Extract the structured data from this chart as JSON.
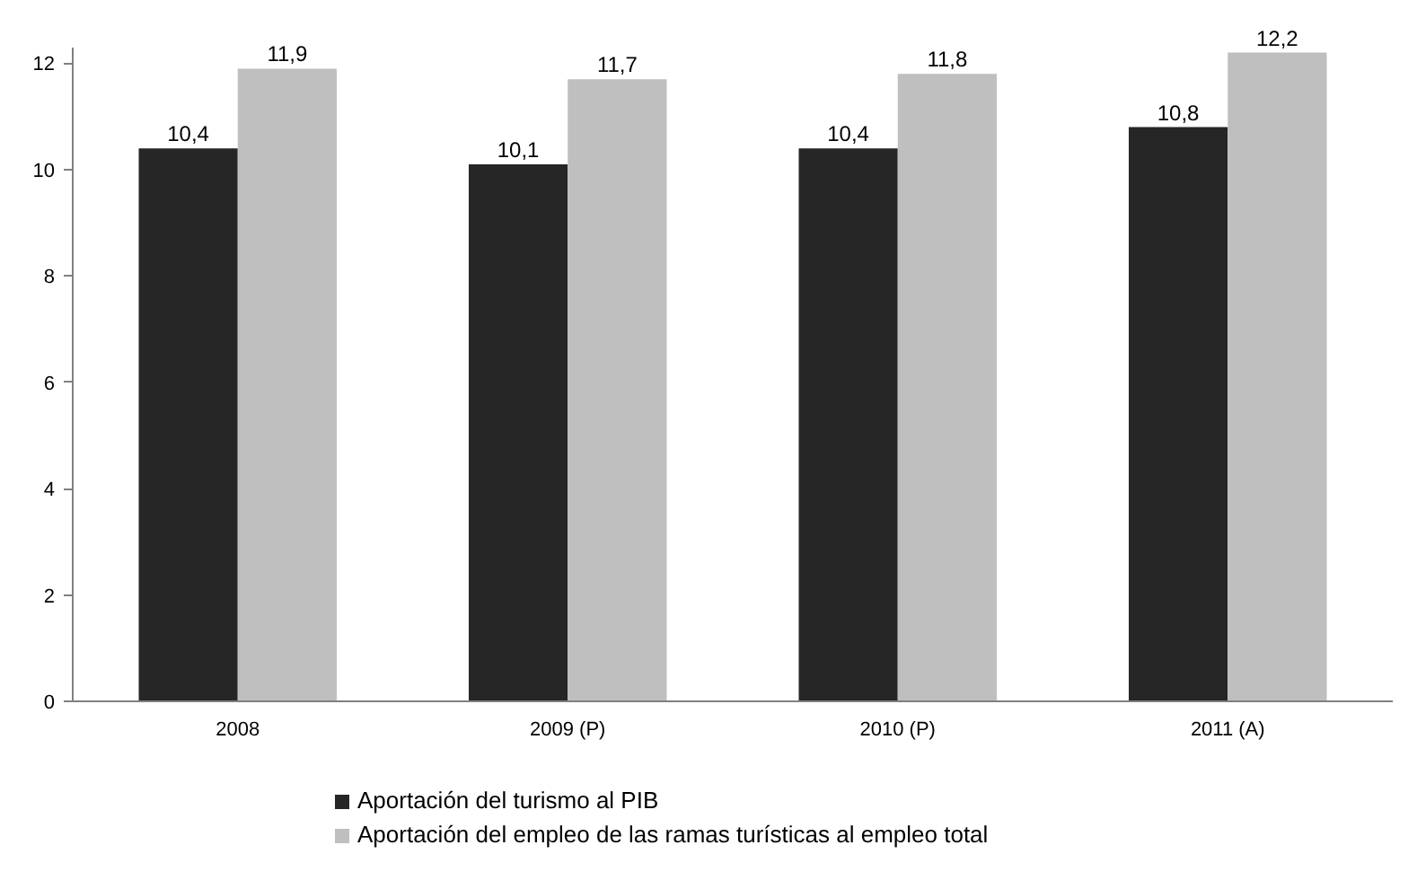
{
  "chart_data": {
    "type": "bar",
    "categories": [
      "2008",
      "2009 (P)",
      "2010 (P)",
      "2011 (A)"
    ],
    "series": [
      {
        "name": "Aportación del turismo al PIB",
        "color": "#262626",
        "values": [
          10.4,
          10.1,
          10.4,
          10.8
        ],
        "value_labels": [
          "10,4",
          "10,1",
          "10,4",
          "10,8"
        ]
      },
      {
        "name": "Aportación del empleo de las ramas turísticas al empleo total",
        "color": "#bfbfbf",
        "values": [
          11.9,
          11.7,
          11.8,
          12.2
        ],
        "value_labels": [
          "11,9",
          "11,7",
          "11,8",
          "12,2"
        ]
      }
    ],
    "ylim": [
      0,
      12.3
    ],
    "yticks": [
      0,
      2,
      4,
      6,
      8,
      10,
      12
    ],
    "grid": false,
    "legend": "bottom"
  }
}
